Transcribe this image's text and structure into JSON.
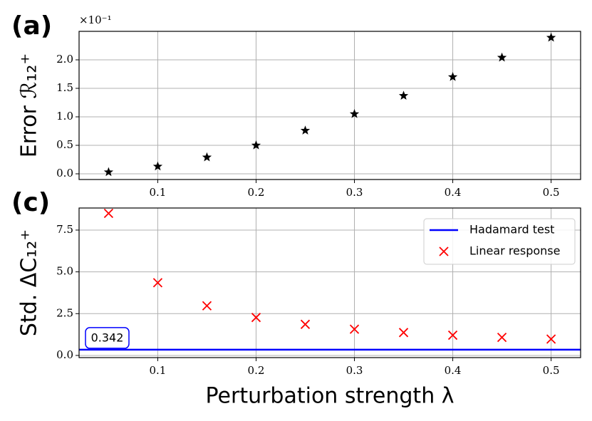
{
  "chart_data": [
    {
      "type": "scatter",
      "panel_label": "(a)",
      "y_label": "Error ℛ₁₂⁺",
      "exponent_label": "×10⁻¹",
      "x": [
        0.05,
        0.1,
        0.15,
        0.2,
        0.25,
        0.3,
        0.35,
        0.4,
        0.45,
        0.5
      ],
      "series": [
        {
          "name": "Error",
          "color": "#000000",
          "marker": "star",
          "values": [
            0.03,
            0.13,
            0.29,
            0.5,
            0.76,
            1.05,
            1.37,
            1.7,
            2.04,
            2.39
          ]
        }
      ],
      "xlim": [
        0.02,
        0.53
      ],
      "ylim": [
        -0.1,
        2.5
      ],
      "xticks": [
        0.1,
        0.2,
        0.3,
        0.4,
        0.5
      ],
      "yticks": [
        {
          "value": 0,
          "label": "0.0"
        },
        {
          "value": 0.5,
          "label": "0.5"
        },
        {
          "value": 1,
          "label": "1.0"
        },
        {
          "value": 1.5,
          "label": "1.5"
        },
        {
          "value": 2,
          "label": "2.0"
        }
      ],
      "grid": true
    },
    {
      "type": "scatter",
      "panel_label": "(c)",
      "y_label": "Std. ΔC₁₂⁺",
      "x_label": "Perturbation strength λ",
      "x": [
        0.05,
        0.1,
        0.15,
        0.2,
        0.25,
        0.3,
        0.35,
        0.4,
        0.45,
        0.5
      ],
      "series": [
        {
          "name": "Hadamard test",
          "color": "#0000ff",
          "marker": "hline",
          "values": [
            0.342
          ],
          "value_labels": [
            "0.342"
          ]
        },
        {
          "name": "Linear response",
          "color": "#ff0000",
          "marker": "x",
          "values": [
            8.5,
            4.35,
            2.97,
            2.27,
            1.86,
            1.57,
            1.37,
            1.21,
            1.08,
            0.98
          ]
        }
      ],
      "xlim": [
        0.02,
        0.53
      ],
      "ylim": [
        -0.13,
        8.82
      ],
      "xticks": [
        0.1,
        0.2,
        0.3,
        0.4,
        0.5
      ],
      "yticks": [
        {
          "value": 0,
          "label": "0.0"
        },
        {
          "value": 2.5,
          "label": "2.5"
        },
        {
          "value": 5,
          "label": "5.0"
        },
        {
          "value": 7.5,
          "label": "7.5"
        }
      ],
      "grid": true,
      "legend": "upper right"
    }
  ]
}
